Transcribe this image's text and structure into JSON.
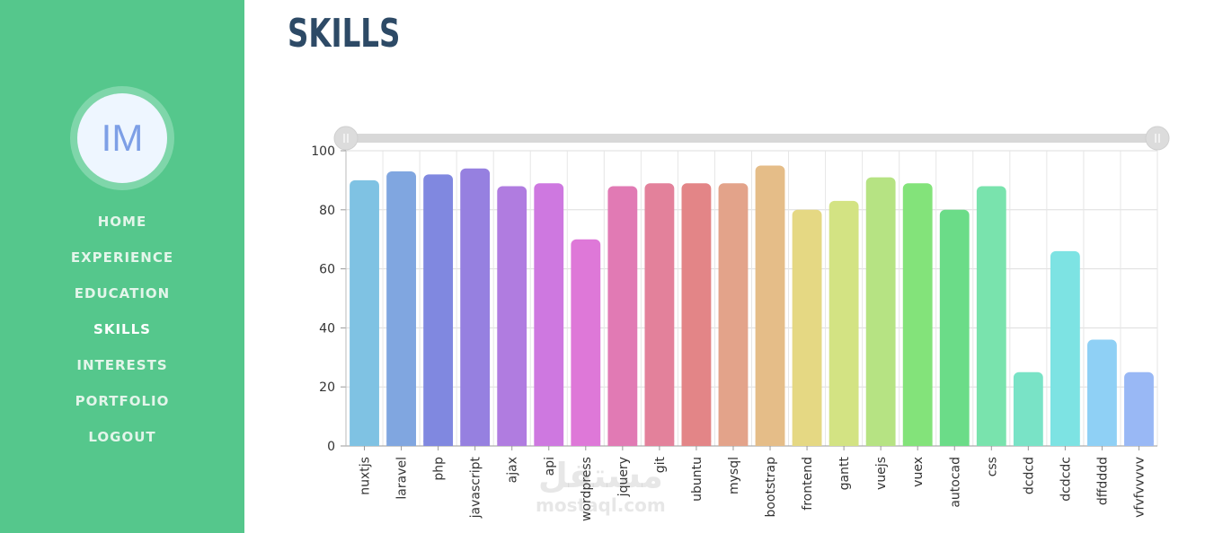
{
  "sidebar": {
    "avatar_initials": "IM",
    "nav": [
      {
        "label": "HOME"
      },
      {
        "label": "EXPERIENCE"
      },
      {
        "label": "EDUCATION"
      },
      {
        "label": "SKILLS",
        "active": true
      },
      {
        "label": "INTERESTS"
      },
      {
        "label": "PORTFOLIO"
      },
      {
        "label": "LOGOUT"
      }
    ]
  },
  "page": {
    "title": "SKILLS"
  },
  "colors": {
    "sidebar": "#55c78c",
    "title": "#2d4a66",
    "avatar_text": "#7d9fe6"
  },
  "range_slider": {
    "start": 0,
    "end": 1
  },
  "watermark": {
    "logo": "مستقل",
    "domain": "mostaql.com"
  },
  "chart_data": {
    "type": "bar",
    "categories": [
      "nuxtjs",
      "laravel",
      "php",
      "javascript",
      "ajax",
      "api",
      "wordpress",
      "jquery",
      "git",
      "ubuntu",
      "mysql",
      "bootstrap",
      "frontend",
      "gantt",
      "vuejs",
      "vuex",
      "autocad",
      "css",
      "dcdcd",
      "dcdcdc",
      "dffdddd",
      "vfvfvvvvv"
    ],
    "values": [
      90,
      93,
      92,
      94,
      88,
      89,
      70,
      88,
      89,
      89,
      89,
      95,
      80,
      83,
      91,
      89,
      80,
      88,
      25,
      66,
      36,
      25
    ],
    "colors": [
      "#7fc2e3",
      "#80a6e0",
      "#8088e0",
      "#9680e0",
      "#b07ce0",
      "#ce78e0",
      "#de78d8",
      "#e17ab4",
      "#e3819b",
      "#e38587",
      "#e3a38a",
      "#e5bd88",
      "#e5d883",
      "#d3e383",
      "#b6e383",
      "#83e37a",
      "#6bdc88",
      "#79e3ad",
      "#79e3c6",
      "#7de3e3",
      "#8fd0f5",
      "#99b8f5"
    ],
    "ylim": [
      0,
      100
    ],
    "yticks": [
      0,
      20,
      40,
      60,
      80,
      100
    ],
    "grid": true,
    "legend": "none"
  }
}
